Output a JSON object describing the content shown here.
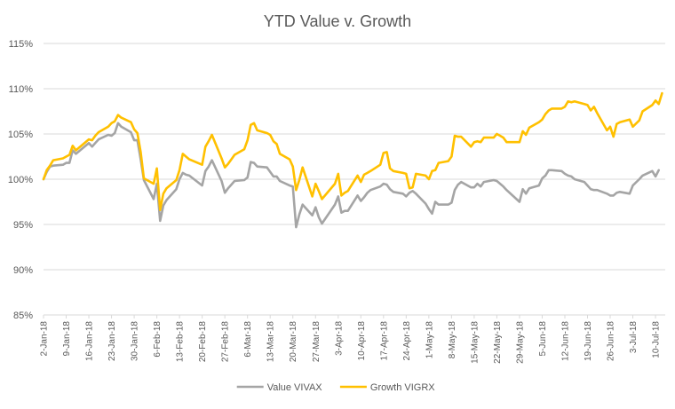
{
  "chart_data": {
    "type": "line",
    "title": "YTD Value v. Growth",
    "xlabel": "",
    "ylabel": "",
    "ylim": [
      0.85,
      1.15
    ],
    "ytick_values": [
      0.85,
      0.9,
      0.95,
      1.0,
      1.05,
      1.1,
      1.15
    ],
    "ytick_labels": [
      "85%",
      "90%",
      "95%",
      "100%",
      "105%",
      "110%",
      "115%"
    ],
    "grid": true,
    "legend_position": "bottom",
    "x_dates": [
      "2018-01-02",
      "2018-01-03",
      "2018-01-04",
      "2018-01-05",
      "2018-01-08",
      "2018-01-09",
      "2018-01-10",
      "2018-01-11",
      "2018-01-12",
      "2018-01-16",
      "2018-01-17",
      "2018-01-18",
      "2018-01-19",
      "2018-01-22",
      "2018-01-23",
      "2018-01-24",
      "2018-01-25",
      "2018-01-26",
      "2018-01-29",
      "2018-01-30",
      "2018-01-31",
      "2018-02-01",
      "2018-02-02",
      "2018-02-05",
      "2018-02-06",
      "2018-02-07",
      "2018-02-08",
      "2018-02-09",
      "2018-02-12",
      "2018-02-13",
      "2018-02-14",
      "2018-02-15",
      "2018-02-16",
      "2018-02-20",
      "2018-02-21",
      "2018-02-22",
      "2018-02-23",
      "2018-02-26",
      "2018-02-27",
      "2018-02-28",
      "2018-03-01",
      "2018-03-02",
      "2018-03-05",
      "2018-03-06",
      "2018-03-07",
      "2018-03-08",
      "2018-03-09",
      "2018-03-12",
      "2018-03-13",
      "2018-03-14",
      "2018-03-15",
      "2018-03-16",
      "2018-03-19",
      "2018-03-20",
      "2018-03-21",
      "2018-03-22",
      "2018-03-23",
      "2018-03-26",
      "2018-03-27",
      "2018-03-28",
      "2018-03-29",
      "2018-04-02",
      "2018-04-03",
      "2018-04-04",
      "2018-04-05",
      "2018-04-06",
      "2018-04-09",
      "2018-04-10",
      "2018-04-11",
      "2018-04-12",
      "2018-04-13",
      "2018-04-16",
      "2018-04-17",
      "2018-04-18",
      "2018-04-19",
      "2018-04-20",
      "2018-04-23",
      "2018-04-24",
      "2018-04-25",
      "2018-04-26",
      "2018-04-27",
      "2018-04-30",
      "2018-05-01",
      "2018-05-02",
      "2018-05-03",
      "2018-05-04",
      "2018-05-07",
      "2018-05-08",
      "2018-05-09",
      "2018-05-10",
      "2018-05-11",
      "2018-05-14",
      "2018-05-15",
      "2018-05-16",
      "2018-05-17",
      "2018-05-18",
      "2018-05-21",
      "2018-05-22",
      "2018-05-23",
      "2018-05-24",
      "2018-05-25",
      "2018-05-29",
      "2018-05-30",
      "2018-05-31",
      "2018-06-01",
      "2018-06-04",
      "2018-06-05",
      "2018-06-06",
      "2018-06-07",
      "2018-06-08",
      "2018-06-11",
      "2018-06-12",
      "2018-06-13",
      "2018-06-14",
      "2018-06-15",
      "2018-06-18",
      "2018-06-19",
      "2018-06-20",
      "2018-06-21",
      "2018-06-22",
      "2018-06-25",
      "2018-06-26",
      "2018-06-27",
      "2018-06-28",
      "2018-06-29",
      "2018-07-02",
      "2018-07-03",
      "2018-07-05",
      "2018-07-06",
      "2018-07-09",
      "2018-07-10",
      "2018-07-11",
      "2018-07-12"
    ],
    "x_range": [
      "2018-01-02",
      "2018-07-13"
    ],
    "x_tick_dates": [
      "2018-01-02",
      "2018-01-09",
      "2018-01-16",
      "2018-01-23",
      "2018-01-30",
      "2018-02-06",
      "2018-02-13",
      "2018-02-20",
      "2018-02-27",
      "2018-03-06",
      "2018-03-13",
      "2018-03-20",
      "2018-03-27",
      "2018-04-03",
      "2018-04-10",
      "2018-04-17",
      "2018-04-24",
      "2018-05-01",
      "2018-05-08",
      "2018-05-15",
      "2018-05-22",
      "2018-05-29",
      "2018-06-05",
      "2018-06-12",
      "2018-06-19",
      "2018-06-26",
      "2018-07-03",
      "2018-07-10"
    ],
    "x_tick_labels": [
      "2-Jan-18",
      "9-Jan-18",
      "16-Jan-18",
      "23-Jan-18",
      "30-Jan-18",
      "6-Feb-18",
      "13-Feb-18",
      "20-Feb-18",
      "27-Feb-18",
      "6-Mar-18",
      "13-Mar-18",
      "20-Mar-18",
      "27-Mar-18",
      "3-Apr-18",
      "10-Apr-18",
      "17-Apr-18",
      "24-Apr-18",
      "1-May-18",
      "8-May-18",
      "15-May-18",
      "22-May-18",
      "29-May-18",
      "5-Jun-18",
      "12-Jun-18",
      "19-Jun-18",
      "26-Jun-18",
      "3-Jul-18",
      "10-Jul-18"
    ],
    "series": [
      {
        "name": "Value VIVAX",
        "color": "#a5a5a5",
        "values": [
          1.0,
          1.008,
          1.014,
          1.015,
          1.016,
          1.018,
          1.018,
          1.032,
          1.028,
          1.04,
          1.036,
          1.04,
          1.044,
          1.049,
          1.048,
          1.051,
          1.062,
          1.058,
          1.052,
          1.043,
          1.043,
          1.022,
          0.999,
          0.978,
          0.995,
          0.954,
          0.971,
          0.977,
          0.989,
          1.0,
          1.007,
          1.005,
          1.004,
          0.993,
          1.009,
          1.014,
          1.021,
          0.998,
          0.985,
          0.99,
          0.994,
          0.998,
          0.999,
          1.002,
          1.019,
          1.018,
          1.014,
          1.013,
          1.008,
          1.003,
          1.003,
          0.998,
          0.993,
          0.992,
          0.947,
          0.961,
          0.972,
          0.96,
          0.969,
          0.958,
          0.951,
          0.972,
          0.981,
          0.963,
          0.965,
          0.965,
          0.982,
          0.976,
          0.98,
          0.985,
          0.988,
          0.992,
          0.995,
          0.994,
          0.989,
          0.986,
          0.984,
          0.981,
          0.985,
          0.987,
          0.984,
          0.973,
          0.967,
          0.962,
          0.975,
          0.972,
          0.972,
          0.974,
          0.988,
          0.994,
          0.997,
          0.991,
          0.991,
          0.995,
          0.992,
          0.997,
          0.999,
          0.998,
          0.995,
          0.992,
          0.988,
          0.975,
          0.989,
          0.984,
          0.99,
          0.993,
          1.001,
          1.004,
          1.01,
          1.01,
          1.009,
          1.006,
          1.004,
          1.003,
          1.0,
          0.997,
          0.993,
          0.989,
          0.988,
          0.988,
          0.984,
          0.982,
          0.982,
          0.985,
          0.986,
          0.984,
          0.993,
          1.0,
          1.004,
          1.009,
          1.003,
          1.01
        ]
      },
      {
        "name": "Growth VIGRX",
        "color": "#ffc000",
        "values": [
          1.0,
          1.01,
          1.015,
          1.021,
          1.023,
          1.025,
          1.027,
          1.037,
          1.032,
          1.044,
          1.043,
          1.048,
          1.052,
          1.058,
          1.062,
          1.064,
          1.071,
          1.068,
          1.063,
          1.055,
          1.051,
          1.03,
          1.001,
          0.995,
          1.012,
          0.966,
          0.984,
          0.99,
          0.999,
          1.01,
          1.028,
          1.025,
          1.022,
          1.016,
          1.036,
          1.042,
          1.049,
          1.023,
          1.013,
          1.017,
          1.022,
          1.027,
          1.033,
          1.043,
          1.06,
          1.062,
          1.054,
          1.051,
          1.049,
          1.042,
          1.039,
          1.028,
          1.022,
          1.014,
          0.988,
          0.999,
          1.013,
          0.981,
          0.995,
          0.987,
          0.978,
          0.995,
          1.006,
          0.982,
          0.985,
          0.987,
          1.004,
          0.997,
          1.005,
          1.007,
          1.009,
          1.016,
          1.029,
          1.03,
          1.012,
          1.009,
          1.007,
          1.006,
          0.99,
          0.991,
          1.006,
          1.004,
          1.0,
          1.009,
          1.01,
          1.018,
          1.02,
          1.025,
          1.048,
          1.047,
          1.047,
          1.036,
          1.041,
          1.042,
          1.041,
          1.046,
          1.046,
          1.05,
          1.048,
          1.046,
          1.041,
          1.041,
          1.053,
          1.049,
          1.057,
          1.063,
          1.066,
          1.072,
          1.076,
          1.078,
          1.078,
          1.08,
          1.086,
          1.085,
          1.086,
          1.083,
          1.082,
          1.076,
          1.08,
          1.073,
          1.054,
          1.058,
          1.047,
          1.061,
          1.063,
          1.066,
          1.058,
          1.065,
          1.075,
          1.082,
          1.087,
          1.083,
          1.095
        ]
      }
    ]
  }
}
